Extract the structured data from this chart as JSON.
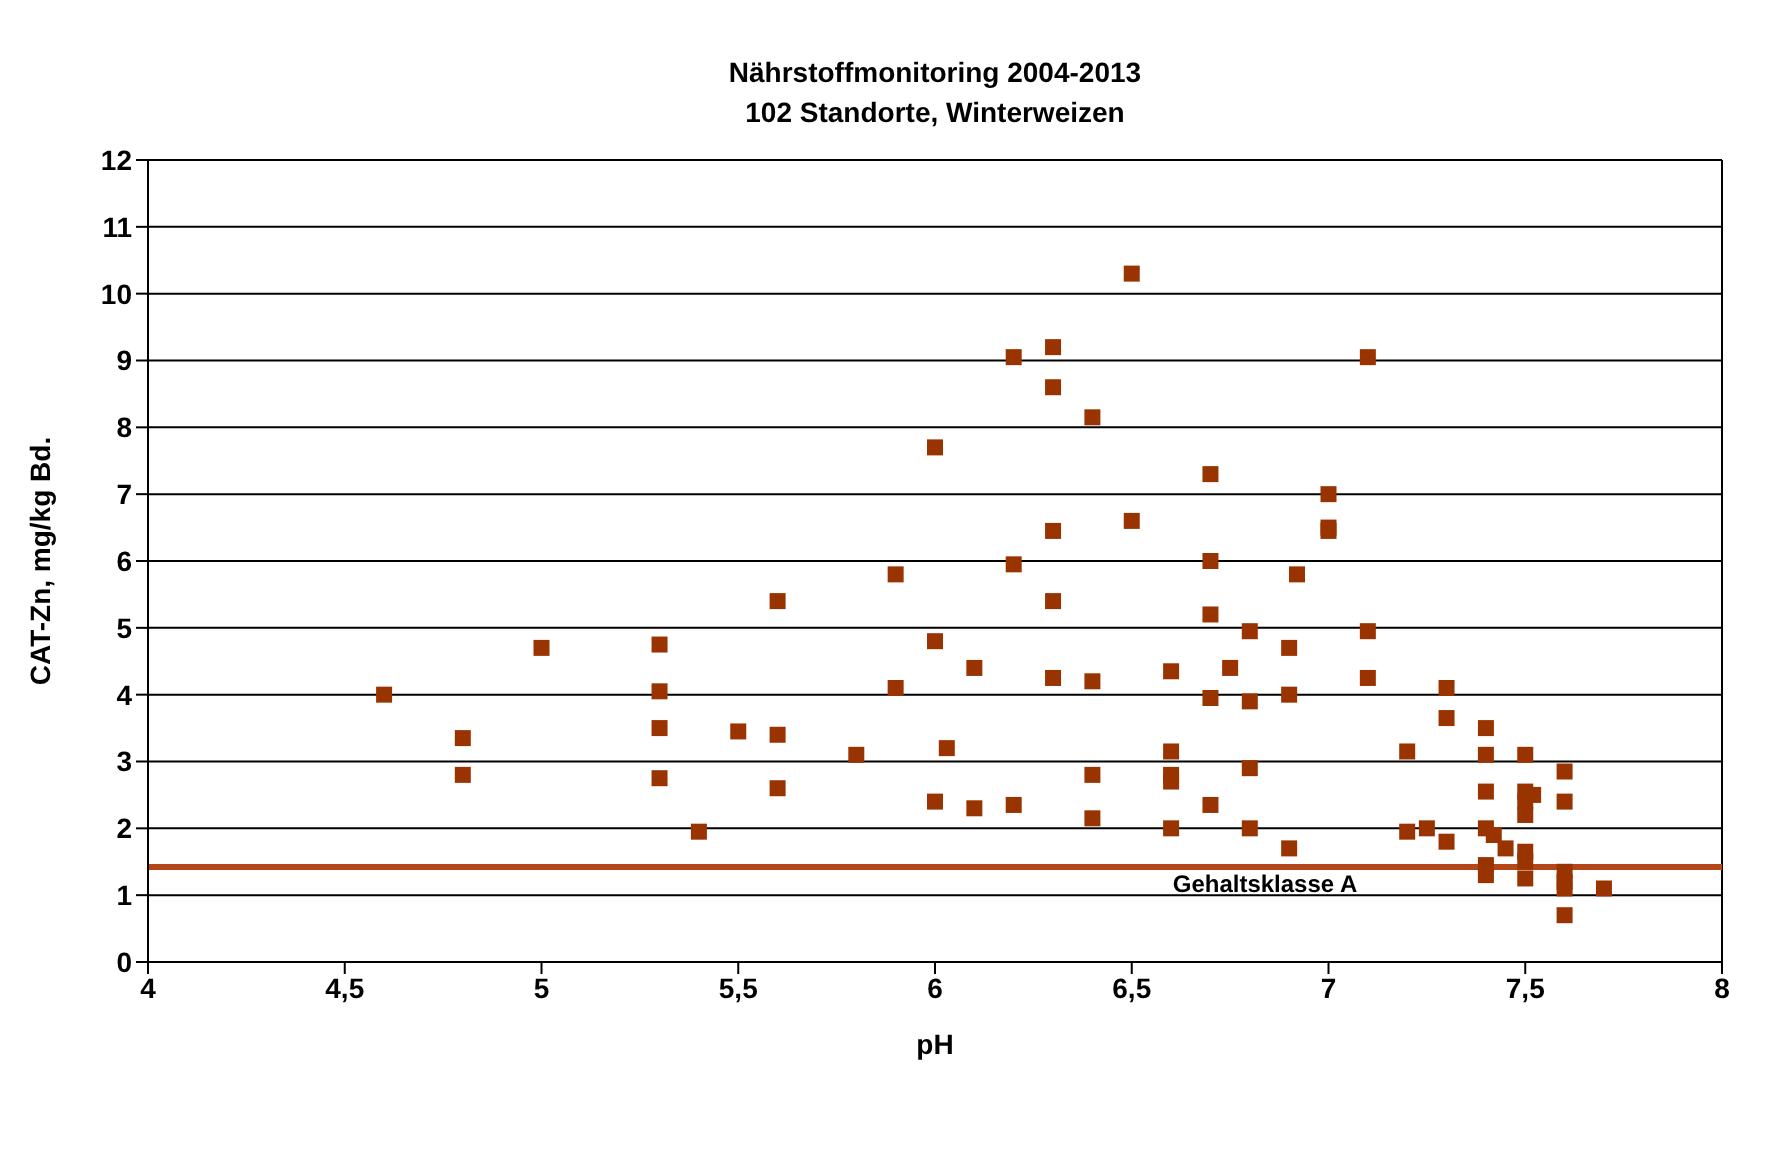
{
  "chart_data": {
    "type": "scatter",
    "title": "Nährstoffmonitoring 2004-2013",
    "subtitle": "102  Standorte, Winterweizen",
    "xlabel": "pH",
    "ylabel": "CAT-Zn, mg/kg Bd.",
    "xlim": [
      4,
      8
    ],
    "xticks": [
      4,
      {
        "value": 4.5,
        "label": "4,5"
      },
      5,
      {
        "value": 5.5,
        "label": "5,5"
      },
      6,
      {
        "value": 6.5,
        "label": "6,5"
      },
      7,
      {
        "value": 7.5,
        "label": "7,5"
      },
      8
    ],
    "ylim": [
      0,
      12
    ],
    "yticks": [
      0,
      1,
      2,
      3,
      4,
      5,
      6,
      7,
      8,
      9,
      10,
      11,
      12
    ],
    "grid": "y",
    "marker": "square",
    "series": [
      {
        "color": "#993300",
        "x": [
          4.6,
          4.8,
          4.8,
          5.0,
          5.3,
          5.3,
          5.3,
          5.3,
          5.4,
          5.5,
          5.6,
          5.6,
          5.6,
          5.8,
          5.9,
          5.9,
          6.0,
          6.0,
          6.0,
          6.03,
          6.1,
          6.1,
          6.2,
          6.2,
          6.2,
          6.3,
          6.3,
          6.3,
          6.3,
          6.3,
          6.4,
          6.4,
          6.4,
          6.4,
          6.5,
          6.5,
          6.6,
          6.6,
          6.6,
          6.6,
          6.6,
          6.7,
          6.7,
          6.7,
          6.7,
          6.7,
          6.75,
          6.8,
          6.8,
          6.8,
          6.8,
          6.9,
          6.9,
          6.9,
          6.92,
          7.0,
          7.0,
          7.0,
          7.1,
          7.1,
          7.1,
          7.2,
          7.2,
          7.25,
          7.3,
          7.3,
          7.3,
          7.4,
          7.4,
          7.4,
          7.4,
          7.42,
          7.45,
          7.4,
          7.4,
          7.5,
          7.5,
          7.52,
          7.5,
          7.5,
          7.5,
          7.5,
          7.5,
          7.6,
          7.6,
          7.6,
          7.6,
          7.6,
          7.6,
          7.7
        ],
        "values": [
          4.0,
          3.35,
          2.8,
          4.7,
          4.75,
          4.05,
          3.5,
          2.75,
          1.95,
          3.45,
          5.4,
          3.4,
          2.6,
          3.1,
          5.8,
          4.1,
          7.7,
          4.8,
          2.4,
          3.2,
          4.4,
          2.3,
          9.05,
          5.95,
          2.35,
          9.2,
          8.6,
          6.45,
          5.4,
          4.25,
          8.15,
          4.2,
          2.8,
          2.15,
          10.3,
          6.6,
          4.35,
          3.15,
          2.8,
          2.7,
          2.0,
          7.3,
          6.0,
          5.2,
          3.95,
          2.35,
          4.4,
          4.95,
          3.9,
          2.9,
          2.0,
          4.7,
          4.0,
          1.7,
          5.8,
          7.0,
          6.5,
          6.45,
          9.05,
          4.95,
          4.25,
          3.15,
          1.95,
          2.0,
          4.1,
          3.65,
          1.8,
          3.5,
          3.1,
          2.55,
          2.0,
          1.9,
          1.7,
          1.45,
          1.3,
          3.1,
          2.55,
          2.5,
          2.4,
          2.2,
          1.65,
          1.5,
          1.25,
          2.85,
          2.4,
          1.35,
          1.2,
          1.1,
          0.7,
          1.1
        ]
      }
    ],
    "ref_lines": [
      {
        "axis": "y",
        "value": 1.42,
        "label": "Gehaltsklasse A",
        "color": "#b5461a"
      }
    ]
  }
}
